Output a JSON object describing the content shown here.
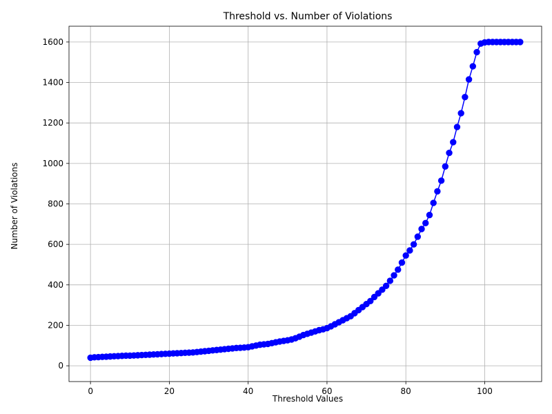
{
  "chart_data": {
    "type": "line",
    "title": "Threshold vs. Number of Violations",
    "xlabel": "Threshold Values",
    "ylabel": "Number of Violations",
    "xlim": [
      -5.45,
      114.45
    ],
    "ylim": [
      -78,
      1678
    ],
    "xticks": [
      0,
      20,
      40,
      60,
      80,
      100
    ],
    "yticks": [
      0,
      200,
      400,
      600,
      800,
      1000,
      1200,
      1400,
      1600
    ],
    "grid": true,
    "marker": "circle",
    "color": "#0000ff",
    "x": [
      0,
      1,
      2,
      3,
      4,
      5,
      6,
      7,
      8,
      9,
      10,
      11,
      12,
      13,
      14,
      15,
      16,
      17,
      18,
      19,
      20,
      21,
      22,
      23,
      24,
      25,
      26,
      27,
      28,
      29,
      30,
      31,
      32,
      33,
      34,
      35,
      36,
      37,
      38,
      39,
      40,
      41,
      42,
      43,
      44,
      45,
      46,
      47,
      48,
      49,
      50,
      51,
      52,
      53,
      54,
      55,
      56,
      57,
      58,
      59,
      60,
      61,
      62,
      63,
      64,
      65,
      66,
      67,
      68,
      69,
      70,
      71,
      72,
      73,
      74,
      75,
      76,
      77,
      78,
      79,
      80,
      81,
      82,
      83,
      84,
      85,
      86,
      87,
      88,
      89,
      90,
      91,
      92,
      93,
      94,
      95,
      96,
      97,
      98,
      99,
      100,
      101,
      102,
      103,
      104,
      105,
      106,
      107,
      108,
      109
    ],
    "y": [
      40,
      42,
      43,
      44,
      45,
      46,
      47,
      48,
      49,
      50,
      50,
      51,
      52,
      53,
      54,
      55,
      56,
      57,
      58,
      59,
      60,
      61,
      62,
      63,
      64,
      65,
      66,
      68,
      70,
      72,
      74,
      76,
      78,
      80,
      82,
      84,
      86,
      88,
      89,
      90,
      92,
      96,
      100,
      104,
      106,
      108,
      112,
      116,
      120,
      123,
      126,
      130,
      136,
      144,
      152,
      158,
      164,
      170,
      176,
      180,
      186,
      195,
      205,
      215,
      225,
      235,
      245,
      260,
      275,
      290,
      305,
      320,
      340,
      358,
      376,
      395,
      420,
      447,
      475,
      510,
      545,
      570,
      600,
      638,
      676,
      705,
      745,
      805,
      862,
      915,
      985,
      1052,
      1105,
      1180,
      1248,
      1328,
      1415,
      1480,
      1550,
      1592,
      1598,
      1600,
      1600,
      1600,
      1600,
      1600,
      1600,
      1600,
      1600,
      1600
    ]
  }
}
